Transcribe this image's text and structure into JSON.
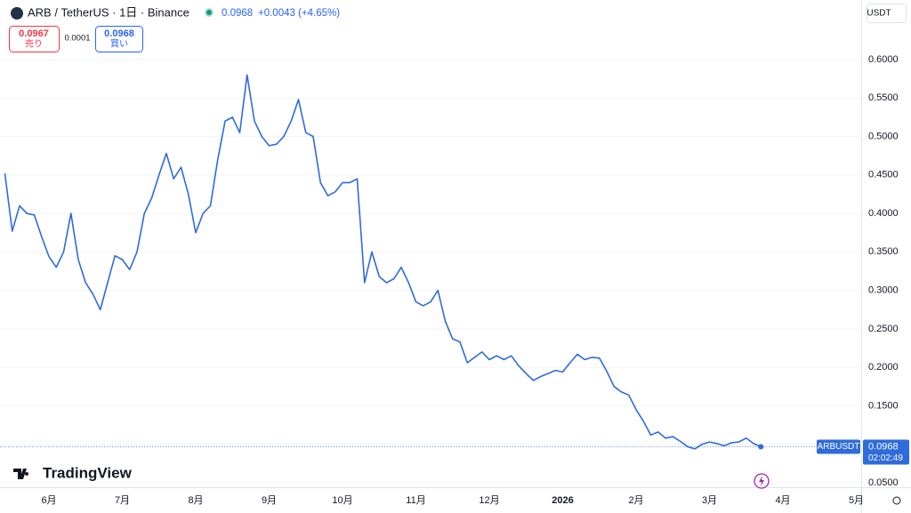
{
  "chart_data": {
    "type": "line",
    "symbol_title": "ARB / TetherUS · 1日 · Binance",
    "change": "+0.0043 (+4.65%)",
    "bid": "0.0967",
    "bid_label": "売り",
    "spread": "0.0001",
    "ask_label": "買い",
    "currency": "USDT",
    "countdown": "02:02:49",
    "logo": "TradingView",
    "categories": [
      null,
      null,
      null,
      null,
      null,
      null,
      "6月",
      null,
      null,
      null,
      null,
      null,
      null,
      null,
      null,
      null,
      "7月",
      null,
      null,
      null,
      null,
      null,
      null,
      null,
      null,
      null,
      "8月",
      null,
      null,
      null,
      null,
      null,
      null,
      null,
      null,
      null,
      "9月",
      null,
      null,
      null,
      null,
      null,
      null,
      null,
      null,
      null,
      "10月",
      null,
      null,
      null,
      null,
      null,
      null,
      null,
      null,
      null,
      "11月",
      null,
      null,
      null,
      null,
      null,
      null,
      null,
      null,
      null,
      "12月",
      null,
      null,
      null,
      null,
      null,
      null,
      null,
      null,
      null,
      "2026",
      null,
      null,
      null,
      null,
      null,
      null,
      null,
      null,
      null,
      "2月",
      null,
      null,
      null,
      null,
      null,
      null,
      null,
      null,
      null,
      "3月",
      null,
      null,
      null,
      null,
      null,
      null,
      null,
      null,
      null,
      "4月",
      null,
      null,
      null,
      null,
      null,
      null,
      null,
      null,
      null,
      "5月"
    ],
    "series": [
      {
        "name": "ARBUSDT",
        "color": "#2f6bdb",
        "values": [
          0.452,
          0.377,
          0.41,
          0.4,
          0.398,
          0.37,
          0.344,
          0.33,
          0.35,
          0.4,
          0.34,
          0.31,
          0.295,
          0.275,
          0.31,
          0.345,
          0.34,
          0.327,
          0.35,
          0.4,
          0.42,
          0.45,
          0.478,
          0.445,
          0.46,
          0.425,
          0.375,
          0.4,
          0.41,
          0.47,
          0.52,
          0.525,
          0.505,
          0.58,
          0.52,
          0.5,
          0.488,
          0.49,
          0.5,
          0.52,
          0.548,
          0.505,
          0.5,
          0.44,
          0.423,
          0.428,
          0.44,
          0.44,
          0.445,
          0.31,
          0.35,
          0.318,
          0.31,
          0.315,
          0.33,
          0.31,
          0.285,
          0.28,
          0.285,
          0.3,
          0.26,
          0.237,
          0.233,
          0.206,
          0.213,
          0.22,
          0.21,
          0.215,
          0.21,
          0.215,
          0.202,
          0.192,
          0.183,
          0.188,
          0.192,
          0.196,
          0.194,
          0.206,
          0.217,
          0.21,
          0.213,
          0.212,
          0.195,
          0.175,
          0.168,
          0.164,
          0.145,
          0.13,
          0.112,
          0.116,
          0.108,
          0.11,
          0.104,
          0.097,
          0.094,
          0.1,
          0.103,
          0.101,
          0.098,
          0.102,
          0.103,
          0.108,
          0.101,
          0.0968,
          null,
          null,
          null,
          null,
          null,
          null,
          null,
          null,
          null,
          null,
          null,
          null,
          null
        ]
      }
    ],
    "ylim": [
      0.0442,
      0.6716
    ],
    "yticks": [
      {
        "value": 0.05,
        "label": "0.0500"
      },
      {
        "value": 0.1,
        "label": "0.1000"
      },
      {
        "value": 0.15,
        "label": "0.1500"
      },
      {
        "value": 0.2,
        "label": "0.2000"
      },
      {
        "value": 0.25,
        "label": "0.2500"
      },
      {
        "value": 0.3,
        "label": "0.3000"
      },
      {
        "value": 0.35,
        "label": "0.3500"
      },
      {
        "value": 0.4,
        "label": "0.4000"
      },
      {
        "value": 0.45,
        "label": "0.4500"
      },
      {
        "value": 0.5,
        "label": "0.5000"
      },
      {
        "value": 0.55,
        "label": "0.5500"
      },
      {
        "value": 0.6,
        "label": "0.6000"
      }
    ],
    "grid": true
  }
}
